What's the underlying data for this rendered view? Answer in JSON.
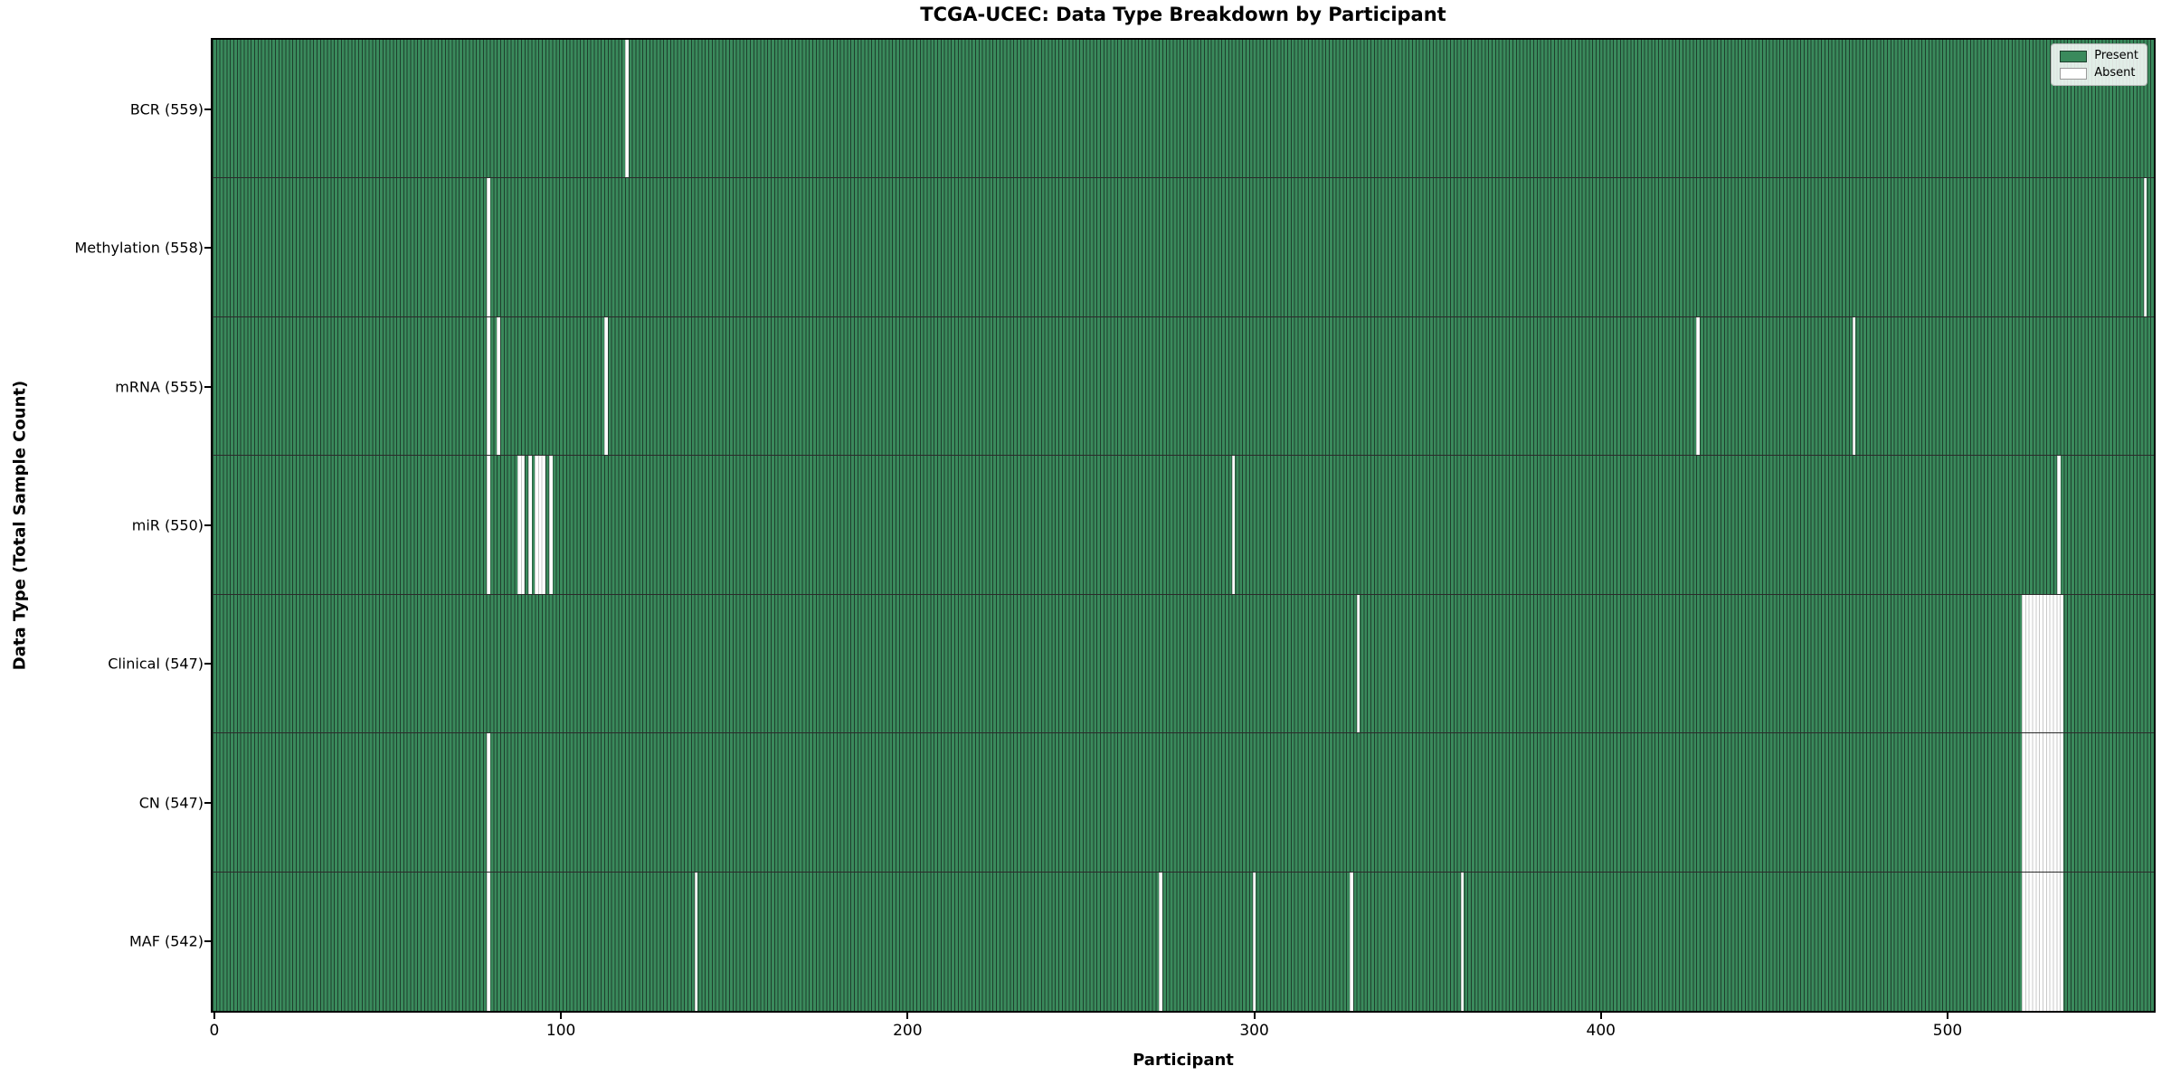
{
  "chart_data": {
    "type": "heatmap",
    "title": "TCGA-UCEC: Data Type Breakdown by Participant",
    "xlabel": "Participant",
    "ylabel": "Data Type (Total Sample Count)",
    "x_ticks": [
      0,
      100,
      200,
      300,
      400,
      500
    ],
    "xlim": [
      -0.5,
      559.5
    ],
    "n_participants": 560,
    "grid": false,
    "legend": {
      "position": "upper right",
      "entries": [
        {
          "label": "Present",
          "color": "#3a8a5c"
        },
        {
          "label": "Absent",
          "color": "#ffffff"
        }
      ]
    },
    "colors": {
      "present": "#3a8a5c",
      "present_edge": "#1e3f2d",
      "absent": "#ffffff",
      "absent_edge": "#c9c9c9",
      "row_divider": "#2b2b2b",
      "axes_border": "#000000"
    },
    "rows": [
      {
        "data_type": "BCR",
        "label": "BCR (559)",
        "present_count": 559,
        "absent_segments": [
          [
            119,
            119
          ]
        ]
      },
      {
        "data_type": "Methylation",
        "label": "Methylation (558)",
        "present_count": 558,
        "absent_segments": [
          [
            79,
            79
          ],
          [
            557,
            557
          ]
        ]
      },
      {
        "data_type": "mRNA",
        "label": "mRNA (555)",
        "present_count": 555,
        "absent_segments": [
          [
            79,
            79
          ],
          [
            82,
            82
          ],
          [
            113,
            113
          ],
          [
            428,
            428
          ],
          [
            473,
            473
          ]
        ]
      },
      {
        "data_type": "miR",
        "label": "miR (550)",
        "present_count": 550,
        "absent_segments": [
          [
            79,
            79
          ],
          [
            88,
            89
          ],
          [
            91,
            91
          ],
          [
            93,
            95
          ],
          [
            97,
            97
          ],
          [
            294,
            294
          ],
          [
            532,
            532
          ]
        ]
      },
      {
        "data_type": "Clinical",
        "label": "Clinical (547)",
        "present_count": 547,
        "absent_segments": [
          [
            330,
            330
          ],
          [
            522,
            533
          ]
        ]
      },
      {
        "data_type": "CN",
        "label": "CN (547)",
        "present_count": 547,
        "absent_segments": [
          [
            79,
            79
          ],
          [
            522,
            533
          ]
        ]
      },
      {
        "data_type": "MAF",
        "label": "MAF (542)",
        "present_count": 542,
        "absent_segments": [
          [
            79,
            79
          ],
          [
            139,
            139
          ],
          [
            273,
            273
          ],
          [
            300,
            300
          ],
          [
            328,
            328
          ],
          [
            360,
            360
          ],
          [
            522,
            533
          ]
        ]
      }
    ]
  }
}
